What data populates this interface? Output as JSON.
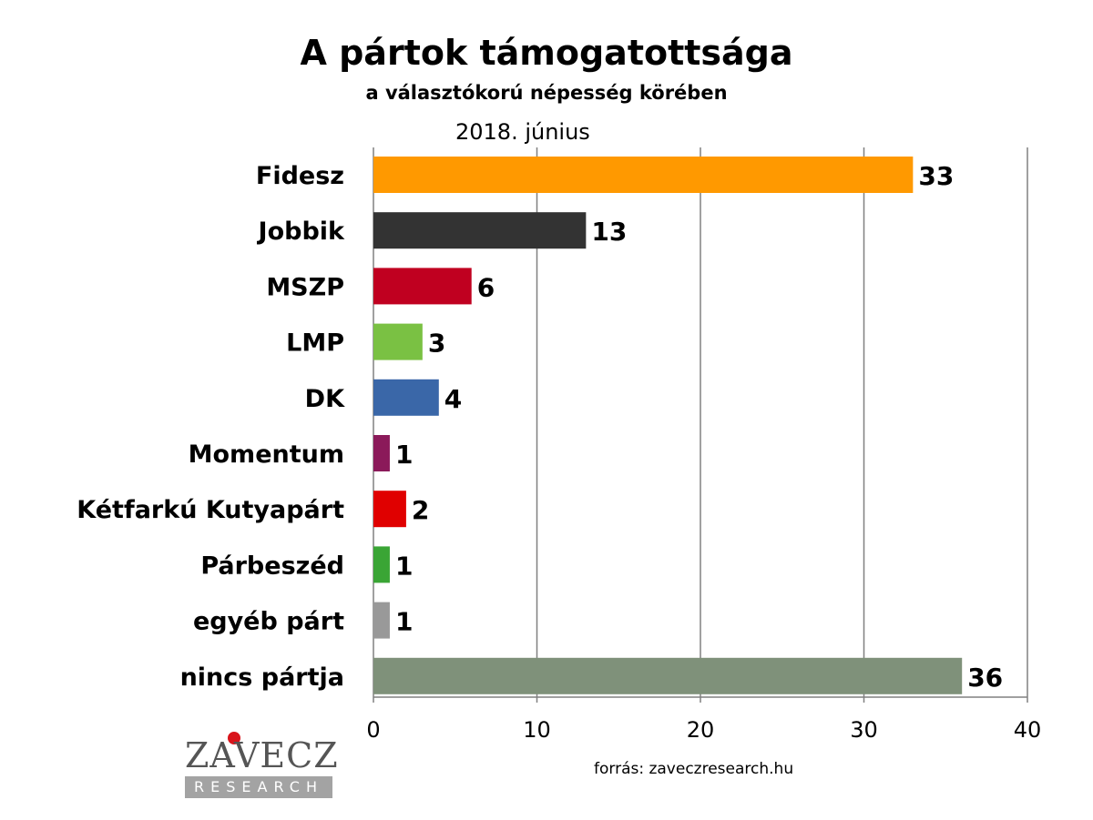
{
  "chart_data": {
    "type": "bar",
    "orientation": "horizontal",
    "title": "A pártok támogatottsága",
    "subtitle": "a választókorú népesség körében",
    "date_label": "2018. június",
    "categories": [
      "Fidesz",
      "Jobbik",
      "MSZP",
      "LMP",
      "DK",
      "Momentum",
      "Kétfarkú Kutyapárt",
      "Párbeszéd",
      "egyéb párt",
      "nincs pártja"
    ],
    "values": [
      33,
      13,
      6,
      3,
      4,
      1,
      2,
      1,
      1,
      36
    ],
    "colors": [
      "#FF9900",
      "#333333",
      "#C00020",
      "#7AC143",
      "#3A67A8",
      "#8B1A5A",
      "#E00000",
      "#3AA535",
      "#999999",
      "#7F917A"
    ],
    "xlim": [
      0,
      40
    ],
    "xticks": [
      0,
      10,
      20,
      30,
      40
    ],
    "grid": true,
    "xlabel": "",
    "ylabel": ""
  },
  "source": "forrás: zaveczresearch.hu",
  "logo": {
    "name": "ZÁVECZ",
    "sub": "RESEARCH"
  }
}
